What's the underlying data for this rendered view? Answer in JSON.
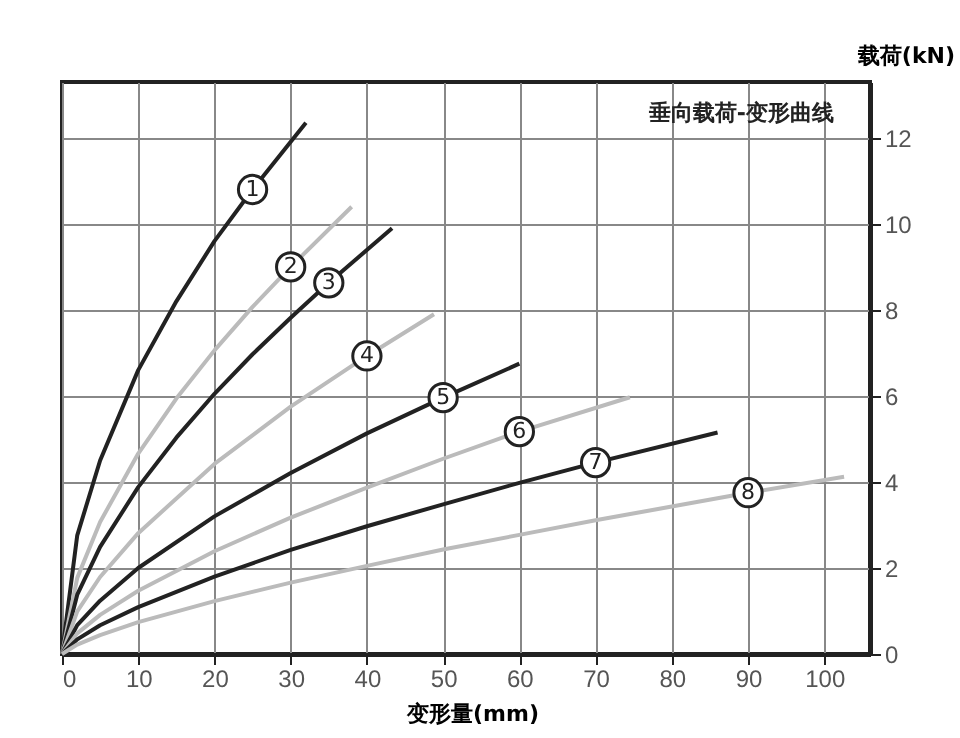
{
  "chart_data": {
    "type": "line",
    "title": "垂向载荷-变形曲线",
    "xlabel": "变形量(mm)",
    "ylabel": "载荷(kN)",
    "xlim": [
      0,
      106
    ],
    "ylim": [
      0,
      13.3
    ],
    "xticks": [
      0,
      10,
      20,
      30,
      40,
      50,
      60,
      70,
      80,
      90,
      100
    ],
    "yticks": [
      0,
      2,
      4,
      6,
      8,
      10,
      12
    ],
    "grid": true,
    "legend": false,
    "marker": "none",
    "line_style": "solid",
    "series": [
      {
        "name": "1",
        "color": "#222222",
        "x": [
          0,
          2,
          5,
          10,
          15,
          20,
          25,
          32
        ],
        "values": [
          0,
          2.76,
          4.5,
          6.6,
          8.2,
          9.6,
          10.8,
          12.35
        ]
      },
      {
        "name": "2",
        "color": "#bbbbbb",
        "x": [
          0,
          2,
          5,
          10,
          15,
          20,
          25,
          30,
          38
        ],
        "values": [
          0,
          1.77,
          3.07,
          4.66,
          5.94,
          7.06,
          8.07,
          9.0,
          10.4
        ]
      },
      {
        "name": "3",
        "color": "#222222",
        "x": [
          0,
          2,
          5,
          10,
          15,
          20,
          25,
          30,
          35,
          43.3
        ],
        "values": [
          0,
          1.38,
          2.49,
          3.88,
          5.03,
          6.05,
          6.97,
          7.82,
          8.63,
          9.9
        ]
      },
      {
        "name": "4",
        "color": "#bbbbbb",
        "x": [
          0,
          2,
          5,
          10,
          20,
          30,
          40,
          48.8
        ],
        "values": [
          0,
          0.99,
          1.79,
          2.81,
          4.42,
          5.75,
          6.93,
          7.9
        ]
      },
      {
        "name": "5",
        "color": "#222222",
        "x": [
          0,
          2,
          5,
          10,
          20,
          30,
          40,
          50,
          60
        ],
        "values": [
          0,
          0.67,
          1.24,
          2.0,
          3.2,
          4.21,
          5.13,
          5.96,
          6.75
        ]
      },
      {
        "name": "6",
        "color": "#bbbbbb",
        "x": [
          0,
          2,
          5,
          10,
          20,
          30,
          40,
          50,
          60,
          74.5
        ],
        "values": [
          0,
          0.48,
          0.91,
          1.47,
          2.39,
          3.17,
          3.87,
          4.54,
          5.17,
          5.97
        ]
      },
      {
        "name": "7",
        "color": "#222222",
        "x": [
          0,
          2,
          5,
          10,
          20,
          30,
          40,
          50,
          60,
          70,
          86
        ],
        "values": [
          0,
          0.34,
          0.67,
          1.09,
          1.8,
          2.42,
          2.97,
          3.48,
          3.98,
          4.45,
          5.15
        ]
      },
      {
        "name": "8",
        "color": "#bbbbbb",
        "x": [
          0,
          2,
          5,
          10,
          20,
          30,
          40,
          50,
          60,
          70,
          80,
          90,
          102.6
        ],
        "values": [
          0,
          0.22,
          0.44,
          0.74,
          1.23,
          1.66,
          2.05,
          2.43,
          2.77,
          3.11,
          3.43,
          3.75,
          4.12
        ]
      }
    ]
  }
}
